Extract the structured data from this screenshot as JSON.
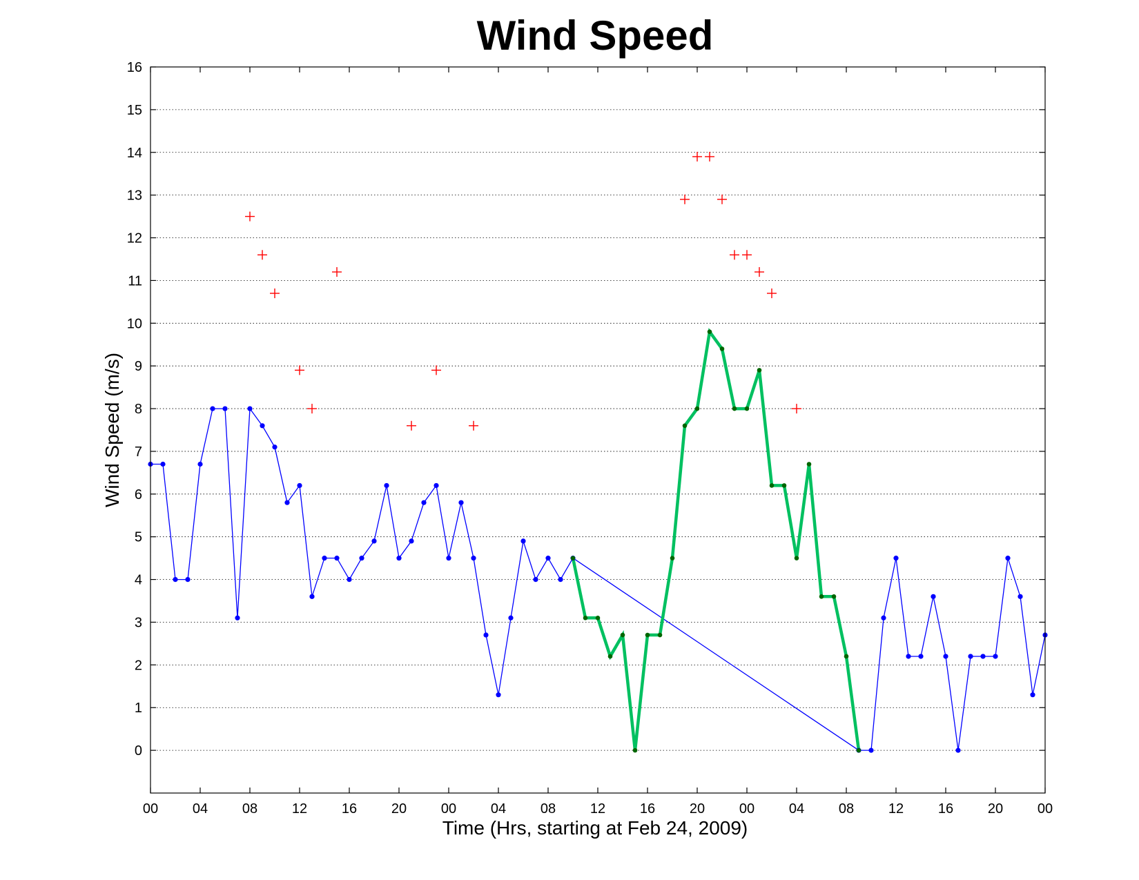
{
  "chart_data": {
    "type": "line",
    "title": "Wind Speed",
    "xlabel": "Time (Hrs, starting at Feb 24, 2009)",
    "ylabel": "Wind Speed (m/s)",
    "xlim": [
      0,
      72
    ],
    "ylim": [
      -1,
      16
    ],
    "x_ticks": [
      0,
      4,
      8,
      12,
      16,
      20,
      24,
      28,
      32,
      36,
      40,
      44,
      48,
      52,
      56,
      60,
      64,
      68,
      72
    ],
    "x_tick_labels": [
      "00",
      "04",
      "08",
      "12",
      "16",
      "20",
      "00",
      "04",
      "08",
      "12",
      "16",
      "20",
      "00",
      "04",
      "08",
      "12",
      "16",
      "20",
      "00"
    ],
    "y_ticks": [
      0,
      1,
      2,
      3,
      4,
      5,
      6,
      7,
      8,
      9,
      10,
      11,
      12,
      13,
      14,
      15,
      16
    ],
    "y_tick_labels": [
      "0",
      "1",
      "2",
      "3",
      "4",
      "5",
      "6",
      "7",
      "8",
      "9",
      "10",
      "11",
      "12",
      "13",
      "14",
      "15",
      "16"
    ],
    "grid": true,
    "x": [
      0,
      1,
      2,
      3,
      4,
      5,
      6,
      7,
      8,
      9,
      10,
      11,
      12,
      13,
      14,
      15,
      16,
      17,
      18,
      19,
      20,
      21,
      22,
      23,
      24,
      25,
      26,
      27,
      28,
      29,
      30,
      31,
      32,
      33,
      34,
      35,
      36,
      37,
      38,
      39,
      40,
      41,
      42,
      43,
      44,
      45,
      46,
      47,
      48,
      49,
      50,
      51,
      52,
      53,
      54,
      55,
      56,
      57,
      58,
      59,
      60,
      61,
      62,
      63,
      64,
      65,
      66,
      67,
      68,
      69,
      70,
      71,
      72
    ],
    "series": [
      {
        "color": "#0000ff",
        "marker": "dot",
        "values": [
          6.7,
          6.7,
          4.0,
          4.0,
          6.7,
          8.0,
          8.0,
          3.1,
          8.0,
          7.6,
          7.1,
          5.8,
          6.2,
          3.6,
          4.5,
          4.5,
          4.0,
          4.5,
          4.9,
          6.2,
          4.5,
          4.9,
          5.8,
          6.2,
          4.5,
          5.8,
          4.5,
          2.7,
          1.3,
          3.1,
          4.9,
          4.0,
          4.5,
          4.0,
          4.5,
          null,
          null,
          null,
          null,
          null,
          null,
          null,
          null,
          null,
          null,
          null,
          null,
          null,
          null,
          null,
          null,
          null,
          null,
          null,
          null,
          null,
          null,
          0.0,
          0.0,
          3.1,
          4.5,
          2.2,
          2.2,
          3.6,
          2.2,
          0.0,
          2.2,
          2.2,
          2.2,
          4.5,
          3.6,
          1.3,
          2.7
        ]
      },
      {
        "color": "#00c060",
        "marker_color": "#006600",
        "marker": "dot",
        "values": [
          null,
          null,
          null,
          null,
          null,
          null,
          null,
          null,
          null,
          null,
          null,
          null,
          null,
          null,
          null,
          null,
          null,
          null,
          null,
          null,
          null,
          null,
          null,
          null,
          null,
          null,
          null,
          null,
          null,
          null,
          null,
          null,
          null,
          null,
          4.5,
          3.1,
          3.1,
          2.2,
          2.7,
          0.0,
          2.7,
          2.7,
          4.5,
          7.6,
          8.0,
          9.8,
          9.4,
          8.0,
          8.0,
          8.9,
          6.2,
          6.2,
          4.5,
          6.7,
          3.6,
          3.6,
          2.2,
          0.0,
          null,
          null,
          null,
          null,
          null,
          null,
          null,
          null,
          null,
          null,
          null,
          null,
          null,
          null,
          null
        ]
      },
      {
        "color": "#ff0000",
        "marker": "plus",
        "points": [
          [
            8,
            12.5
          ],
          [
            9,
            11.6
          ],
          [
            10,
            10.7
          ],
          [
            12,
            8.9
          ],
          [
            13,
            8.0
          ],
          [
            15,
            11.2
          ],
          [
            21,
            7.6
          ],
          [
            23,
            8.9
          ],
          [
            26,
            7.6
          ],
          [
            43,
            12.9
          ],
          [
            44,
            13.9
          ],
          [
            45,
            13.9
          ],
          [
            46,
            12.9
          ],
          [
            47,
            11.6
          ],
          [
            48,
            11.6
          ],
          [
            49,
            11.2
          ],
          [
            50,
            10.7
          ],
          [
            52,
            8.0
          ]
        ]
      }
    ]
  }
}
